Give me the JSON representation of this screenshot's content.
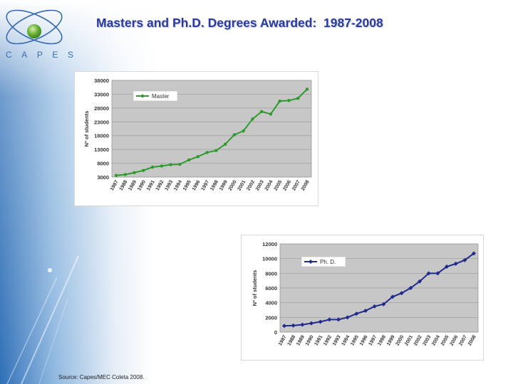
{
  "page": {
    "title": "Masters and Ph.D. Degrees Awarded:  1987-2008",
    "logo_letters": [
      "C",
      "A",
      "P",
      "E",
      "S"
    ],
    "source": "Source: Capes/MEC Coleta 2008."
  },
  "colors": {
    "title": "#2b3c9a",
    "master_line": "#2e9a2e",
    "phd_line": "#1f2a8a",
    "plot_bg": "#c7c7c7"
  },
  "chart_data": [
    {
      "type": "line",
      "id": "master",
      "title": "",
      "xlabel": "",
      "ylabel": "Nº of students",
      "ylim": [
        3000,
        38000
      ],
      "yticks": [
        3000,
        8000,
        13000,
        18000,
        23000,
        28000,
        33000,
        38000
      ],
      "grid": true,
      "legend": "top-left",
      "x": [
        "1987",
        "1988",
        "1989",
        "1990",
        "1991",
        "1992",
        "1993",
        "1994",
        "1995",
        "1996",
        "1997",
        "1998",
        "1999",
        "2000",
        "2001",
        "2002",
        "2003",
        "2004",
        "2005",
        "2006",
        "2007",
        "2008"
      ],
      "series": [
        {
          "name": "Master",
          "values": [
            3600,
            3900,
            4600,
            5400,
            6600,
            7000,
            7500,
            7600,
            9200,
            10400,
            11900,
            12600,
            14900,
            18300,
            19700,
            24000,
            26700,
            25800,
            30500,
            30700,
            31500,
            34800
          ]
        }
      ]
    },
    {
      "type": "line",
      "id": "phd",
      "title": "",
      "xlabel": "",
      "ylabel": "Nº of students",
      "ylim": [
        0,
        12000
      ],
      "yticks": [
        0,
        2000,
        4000,
        6000,
        8000,
        10000,
        12000
      ],
      "grid": true,
      "legend": "top-left",
      "x": [
        "1987",
        "1988",
        "1989",
        "1990",
        "1991",
        "1992",
        "1993",
        "1994",
        "1995",
        "1996",
        "1997",
        "1998",
        "1999",
        "2000",
        "2001",
        "2002",
        "2003",
        "2004",
        "2005",
        "2006",
        "2007",
        "2008"
      ],
      "series": [
        {
          "name": "Ph. D.",
          "values": [
            850,
            900,
            1000,
            1200,
            1400,
            1700,
            1700,
            2000,
            2500,
            2900,
            3500,
            3800,
            4800,
            5300,
            6000,
            6900,
            8000,
            8000,
            8900,
            9300,
            9800,
            10700
          ]
        }
      ]
    }
  ]
}
